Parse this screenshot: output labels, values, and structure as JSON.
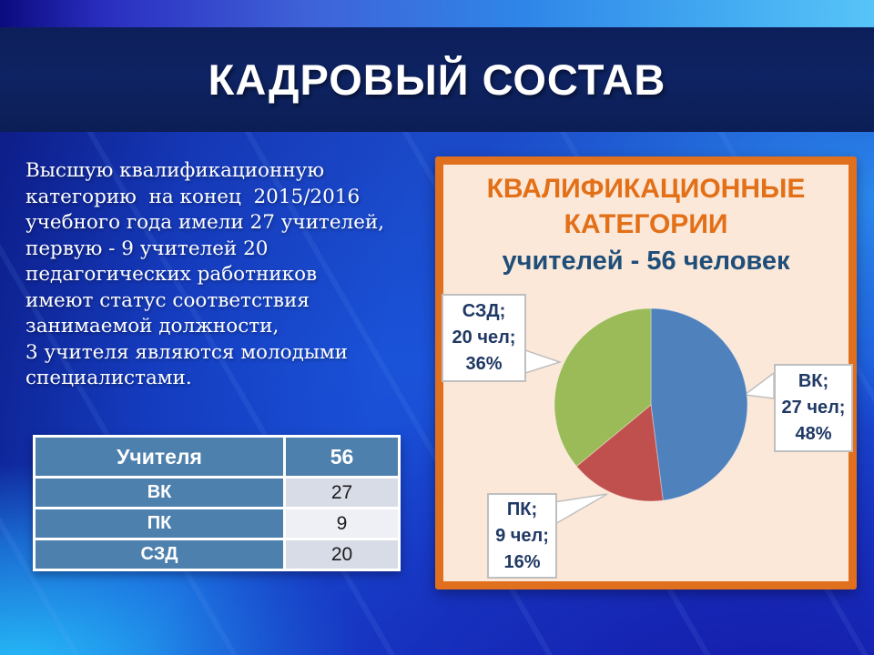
{
  "slide": {
    "title": "КАДРОВЫЙ СОСТАВ",
    "body_text": "Высшую квалификационную\nкатегорию  на конец  2015/2016\nучебного года имели 27 учителей,\nпервую - 9 учителей 20\nпедагогических работников\nимеют статус соответствия\nзанимаемой должности,\n3 учителя являются молодыми\nспециалистами."
  },
  "staff_table": {
    "header": {
      "label": "Учителя",
      "value": "56"
    },
    "rows": [
      {
        "label": "ВК",
        "value": "27"
      },
      {
        "label": "ПК",
        "value": "9"
      },
      {
        "label": "СЗД",
        "value": "20"
      }
    ]
  },
  "chart_panel": {
    "title_line1": "КВАЛИФИКАЦИОННЫЕ",
    "title_line2": "КАТЕГОРИИ",
    "subtitle": "учителей - 56 человек"
  },
  "chart_data": {
    "type": "pie",
    "title": "КВАЛИФИКАЦИОННЫЕ КАТЕГОРИИ",
    "subtitle": "учителей - 56 человек",
    "total": 56,
    "unit": "чел",
    "legend_position": "callouts",
    "start_angle_deg": 0,
    "direction": "clockwise",
    "slices": [
      {
        "label": "ВК",
        "value": 27,
        "percent": 48,
        "color": "#4F81BD",
        "callout_lines": [
          "ВК;",
          "27 чел;",
          "48%"
        ]
      },
      {
        "label": "ПК",
        "value": 9,
        "percent": 16,
        "color": "#C0504D",
        "callout_lines": [
          "ПК;",
          "9 чел;",
          "16%"
        ]
      },
      {
        "label": "СЗД",
        "value": 20,
        "percent": 36,
        "color": "#9BBB59",
        "callout_lines": [
          "СЗД;",
          "20 чел;",
          "36%"
        ]
      }
    ]
  },
  "colors": {
    "accent_orange": "#E0701D",
    "panel_background": "#FBE8D9",
    "panel_title_orange": "#E36F17",
    "title_band_navy": "#0E2360",
    "subtitle_navy": "#1F4E79",
    "callout_text_navy": "#1F3864",
    "table_blue": "#4E80AE",
    "table_light_row": "#D8DCE6",
    "table_lighter_row": "#EEF0F5"
  }
}
